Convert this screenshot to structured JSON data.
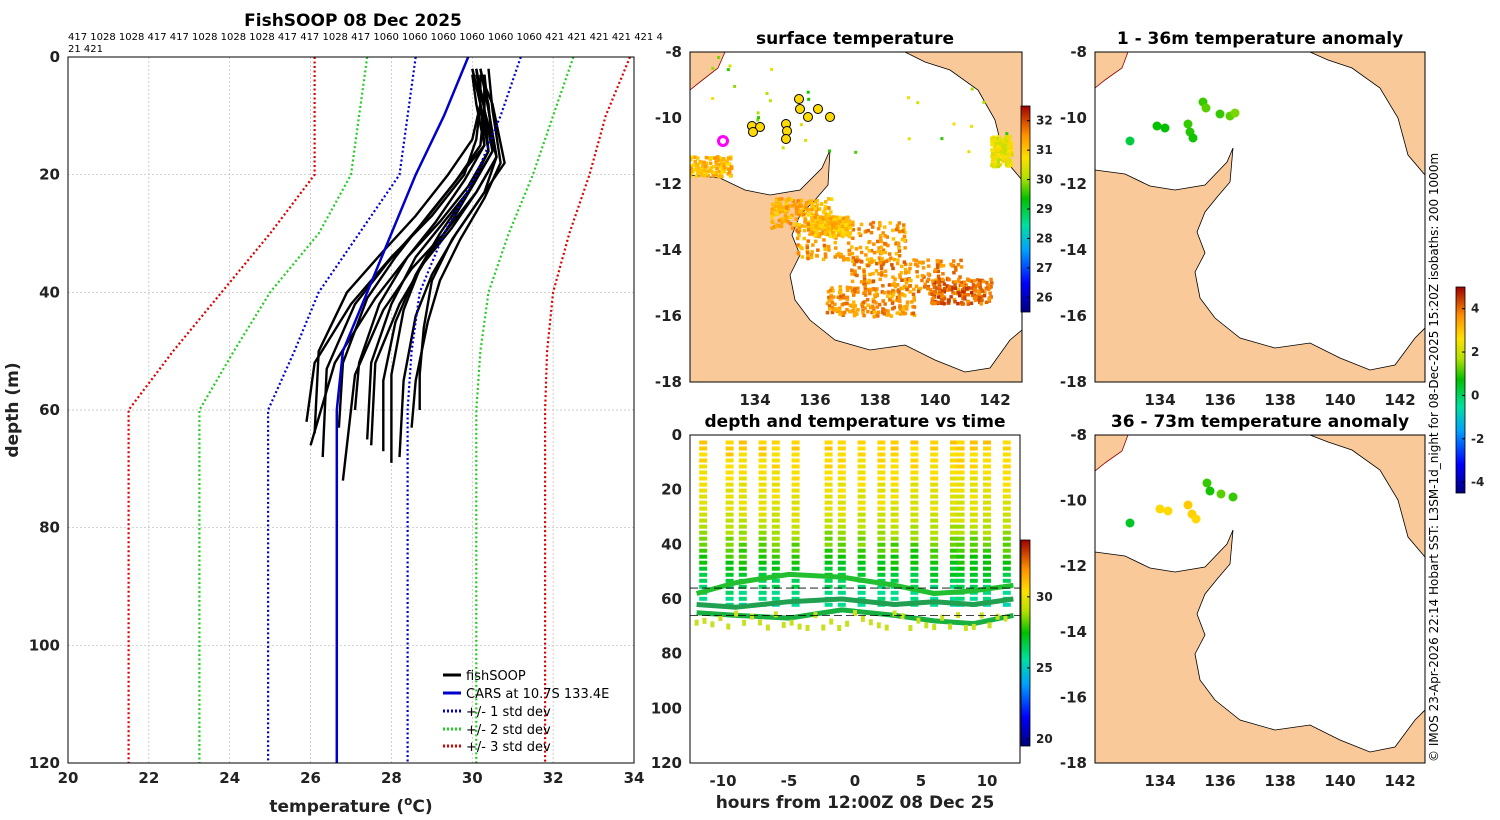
{
  "side_note": "© IMOS 23-Apr-2026 22:14 Hobart SST: L3SM-1d_night for 08-Dec-2025 15:20Z isobaths: 200  1000m",
  "colors": {
    "land": "#f9c99a",
    "black": "#000000",
    "blue": "#0000cc",
    "green": "#22cc22",
    "red": "#dd0000"
  },
  "chart_data": [
    {
      "type": "line",
      "title": "FishSOOP 08 Dec 2025",
      "xlabel": "temperature (°C)",
      "xlabel_base": "temperature (",
      "xlabel_sup": "o",
      "xlabel_end": "C)",
      "ylabel": "depth (m)",
      "xlim": [
        20,
        34
      ],
      "ylim": [
        0,
        120
      ],
      "xticks": [
        "20",
        "22",
        "24",
        "26",
        "28",
        "30",
        "32",
        "34"
      ],
      "yticks": [
        "0",
        "20",
        "40",
        "60",
        "80",
        "100",
        "120"
      ],
      "top_labels_line1": "417 1028 1028 417 417 1028 1028 1028 417 417 1028 417 1060 1060 1060 1060 1060 1060 421 421 421 421 421 4",
      "top_labels_line2": "21 421",
      "legend": [
        "fishSOOP",
        "CARS at 10.7S 133.4E",
        "+/- 1 std dev",
        "+/- 2 std dev",
        "+/- 3 std dev"
      ],
      "series": [
        {
          "name": "CARS mean",
          "color": "#0000cc",
          "style": "solid",
          "x": [
            29.9,
            29.3,
            28.6,
            28.0,
            27.4,
            26.8,
            26.65,
            26.65
          ],
          "y": [
            0,
            10,
            20,
            30,
            40,
            50,
            60,
            120
          ]
        },
        {
          "name": "+1 std",
          "color": "#0000cc",
          "style": "dot",
          "x": [
            31.2,
            30.7,
            30.1,
            29.3,
            28.7,
            28.5,
            28.4,
            28.4
          ],
          "y": [
            0,
            10,
            20,
            30,
            40,
            50,
            60,
            120
          ]
        },
        {
          "name": "-1 std",
          "color": "#0000cc",
          "style": "dot",
          "x": [
            28.6,
            28.4,
            28.2,
            27.2,
            26.2,
            25.6,
            24.95,
            24.95
          ],
          "y": [
            0,
            10,
            20,
            30,
            40,
            50,
            60,
            120
          ]
        },
        {
          "name": "+2 std",
          "color": "#22cc22",
          "style": "dot",
          "x": [
            32.5,
            32.0,
            31.5,
            30.9,
            30.4,
            30.2,
            30.1,
            30.1
          ],
          "y": [
            0,
            10,
            20,
            30,
            40,
            50,
            60,
            120
          ]
        },
        {
          "name": "-2 std",
          "color": "#22cc22",
          "style": "dot",
          "x": [
            27.4,
            27.2,
            27.0,
            26.2,
            25.0,
            24.1,
            23.25,
            23.25
          ],
          "y": [
            0,
            10,
            20,
            30,
            40,
            50,
            60,
            120
          ]
        },
        {
          "name": "+3 std",
          "color": "#dd0000",
          "style": "dot",
          "x": [
            33.9,
            33.3,
            32.9,
            32.4,
            32.0,
            31.85,
            31.8,
            31.8
          ],
          "y": [
            0,
            10,
            20,
            30,
            40,
            50,
            60,
            120
          ]
        },
        {
          "name": "-3 std",
          "color": "#dd0000",
          "style": "dot",
          "x": [
            26.1,
            26.1,
            26.1,
            25.0,
            23.8,
            22.6,
            21.5,
            21.5
          ],
          "y": [
            0,
            10,
            20,
            30,
            40,
            50,
            60,
            120
          ]
        }
      ],
      "profiles": [
        {
          "x": [
            30.2,
            30.2,
            30.1,
            29.8,
            29.0,
            28.0,
            27.0,
            26.1,
            25.9
          ],
          "y": [
            3,
            8,
            14,
            20,
            27,
            34,
            42,
            52,
            62
          ]
        },
        {
          "x": [
            30.1,
            30.3,
            30.5,
            30.0,
            29.3,
            28.6,
            28.0,
            27.5,
            27.4
          ],
          "y": [
            2,
            9,
            16,
            22,
            28,
            34,
            42,
            52,
            65
          ]
        },
        {
          "x": [
            30.3,
            30.4,
            30.6,
            30.3,
            29.6,
            29.0,
            28.6,
            28.3,
            28.2
          ],
          "y": [
            3,
            9,
            17,
            23,
            30,
            37,
            44,
            55,
            68
          ]
        },
        {
          "x": [
            30.0,
            30.2,
            30.3,
            29.8,
            29.1,
            28.4,
            27.6,
            26.6,
            26.0
          ],
          "y": [
            2,
            8,
            15,
            21,
            28,
            34,
            41,
            52,
            66
          ]
        },
        {
          "x": [
            30.2,
            30.5,
            30.8,
            30.2,
            29.5,
            29.0,
            28.8,
            28.7,
            28.7
          ],
          "y": [
            3,
            8,
            18,
            24,
            31,
            38,
            46,
            54,
            60
          ]
        },
        {
          "x": [
            30.1,
            30.2,
            30.0,
            29.4,
            28.6,
            27.8,
            26.9,
            26.2,
            26.1
          ],
          "y": [
            2,
            8,
            14,
            20,
            27,
            33,
            40,
            50,
            64
          ]
        },
        {
          "x": [
            30.3,
            30.3,
            30.4,
            29.9,
            29.2,
            28.6,
            28.1,
            27.8,
            27.8
          ],
          "y": [
            3,
            9,
            16,
            23,
            30,
            37,
            45,
            55,
            67
          ]
        },
        {
          "x": [
            30.2,
            30.4,
            30.6,
            30.1,
            29.5,
            28.8,
            28.2,
            27.6,
            27.5
          ],
          "y": [
            2,
            9,
            17,
            23,
            29,
            35,
            42,
            52,
            66
          ]
        },
        {
          "x": [
            30.0,
            30.1,
            30.3,
            29.6,
            28.8,
            27.9,
            27.1,
            26.4,
            26.3
          ],
          "y": [
            3,
            8,
            15,
            21,
            28,
            35,
            42,
            53,
            68
          ]
        },
        {
          "x": [
            30.4,
            30.5,
            30.7,
            30.3,
            29.7,
            29.2,
            28.9,
            28.6,
            28.5
          ],
          "y": [
            2,
            9,
            18,
            24,
            31,
            38,
            45,
            55,
            63
          ]
        },
        {
          "x": [
            30.1,
            30.3,
            30.2,
            29.6,
            28.9,
            28.1,
            27.4,
            26.8,
            26.7
          ],
          "y": [
            3,
            8,
            15,
            21,
            27,
            34,
            41,
            52,
            63
          ]
        },
        {
          "x": [
            30.2,
            30.4,
            30.5,
            30.0,
            29.4,
            28.7,
            28.3,
            28.0,
            28.0
          ],
          "y": [
            2,
            8,
            16,
            22,
            29,
            36,
            43,
            54,
            69
          ]
        },
        {
          "x": [
            30.3,
            30.3,
            30.6,
            30.1,
            29.3,
            28.5,
            27.8,
            27.1,
            26.8
          ],
          "y": [
            3,
            9,
            17,
            23,
            30,
            36,
            43,
            54,
            72
          ]
        },
        {
          "x": [
            30.0,
            30.2,
            30.4,
            29.9,
            29.2,
            28.4,
            27.7,
            27.2,
            27.1
          ],
          "y": [
            2,
            8,
            16,
            22,
            28,
            34,
            42,
            52,
            60
          ]
        }
      ]
    },
    {
      "type": "heatmap",
      "title": "surface temperature",
      "xticks": [
        "134",
        "136",
        "138",
        "140",
        "142"
      ],
      "yticks": [
        "-8",
        "-10",
        "-12",
        "-14",
        "-16",
        "-18"
      ],
      "colorbar_ticks": [
        "32",
        "31",
        "30",
        "29",
        "28",
        "27",
        "26"
      ],
      "colorbar_range": [
        25.5,
        32.5
      ]
    },
    {
      "type": "heatmap",
      "title": "1 - 36m temperature anomaly",
      "xticks": [
        "134",
        "136",
        "138",
        "140",
        "142"
      ],
      "yticks": [
        "-8",
        "-10",
        "-12",
        "-14",
        "-16",
        "-18"
      ],
      "colorbar_ticks": [
        "4",
        "2",
        "0",
        "-2",
        "-4"
      ],
      "colorbar_range": [
        -4.5,
        5
      ]
    },
    {
      "type": "scatter",
      "title": "depth and temperature vs time",
      "xlabel": "hours from 12:00Z 08 Dec 25",
      "xlim": [
        -12.5,
        12.5
      ],
      "ylim": [
        0,
        120
      ],
      "xticks": [
        "-10",
        "-5",
        "0",
        "5",
        "10"
      ],
      "yticks": [
        "0",
        "20",
        "40",
        "60",
        "80",
        "100",
        "120"
      ],
      "colorbar_ticks": [
        "30",
        "25",
        "20"
      ],
      "colorbar_range": [
        19.5,
        34
      ],
      "dive_times": [
        -11.5,
        -9.5,
        -8.5,
        -7.0,
        -6.0,
        -4.5,
        -2.0,
        -1.0,
        0.5,
        2.0,
        3.0,
        4.5,
        6.0,
        7.5,
        8.0,
        9.0,
        10.0,
        11.5
      ]
    },
    {
      "type": "heatmap",
      "title": "36 - 73m temperature anomaly",
      "xticks": [
        "134",
        "136",
        "138",
        "140",
        "142"
      ],
      "yticks": [
        "-8",
        "-10",
        "-12",
        "-14",
        "-16",
        "-18"
      ]
    }
  ]
}
